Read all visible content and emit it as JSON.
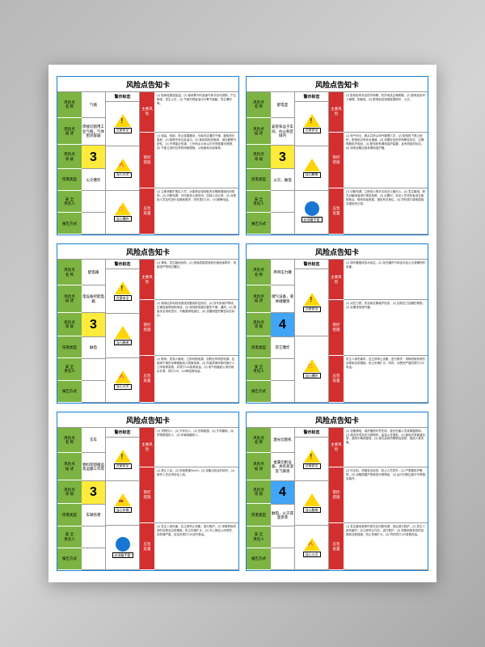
{
  "title": "风险点告知卡",
  "labels": {
    "name": "风险点\n名 称",
    "desc": "风险点\n描 述",
    "level": "风险点\n等 级",
    "type": "伤害类型",
    "person": "安 全\n责任人",
    "report": "报告方式",
    "signs": "警示标志",
    "main_risk": "主要风险",
    "control": "管控\n措施",
    "emergency": "应急\n处置"
  },
  "cards": [
    {
      "name": "气瓶",
      "desc": "焊接切割用工业气瓶，气体密闭容器",
      "level": "3",
      "level_color": "yellow",
      "type": "火灾爆炸",
      "person": "",
      "report": "",
      "signs": [
        {
          "icon": "warn",
          "caption": "注意安全"
        },
        {
          "icon": "fire",
          "caption": "当心火灾"
        },
        {
          "icon": "explode",
          "caption": "当心爆炸"
        }
      ],
      "main_risk": "(1) 瓶体碰撞或高温，(2) 使用氧气时高速气体冲击可燃物，产生静电，发生火灾，(3) 气瓶内残留油污与氧气接触，发生爆炸等。",
      "control": "(1) 轻装、轻卸，防止碰撞震动，仓库内应通风干燥，避免阳光直射，(2) 瓶嘴不准沾染油污，(3) 使用前检查瓶阀、减压器等气密性，(4) 不得靠近热源，工作地点10米以内不得放置可燃物，(5) 气瓶立放时应有防倾倒措施，以免倒地引起事故。",
      "emergency": "(1) 立即疏散扩散区人员，对事故区域采取安全隔离措施封闭现场，(2) 切断电源，尽可能将火源关闭，控制火灾区域，(3) 对受到人员及时进行自救和救护，同时拨打120、110报警电话。"
    },
    {
      "name": "配电室",
      "desc": "安装布设于车间，办公各区域内",
      "level": "3",
      "level_color": "yellow",
      "type": "火灾，触电",
      "person": "",
      "report": "",
      "signs": [
        {
          "icon": "warn",
          "caption": "注意安全"
        },
        {
          "icon": "elec",
          "caption": "当心触电"
        },
        {
          "icon": "blue",
          "caption": "必须戴手套"
        }
      ],
      "main_risk": "(1) 配电柜有安全防护和警，防护用品正确佩戴，(2) 配电柜设专人管理，防触电，(3) 配电柜容易被碰撞损坏，火灾。",
      "control": "(1) 电气作业，服从并听从电气管理人员，(2) 配电柜下禁止堆积，配电柜边有安全通道，(3) 设置安全防护和警告标志，正确佩戴防护用品，(4) 配电柜有漏电保护装置，且有明显的标志。(5) 用电设备应接有漏电保护器。",
      "emergency": "(1) 切断电源，立即将火势扑灭用灭火器灭火，(2) 发生触电，首先对触电者进行紧急抢救，(3) 必要时，安全人员将伤者送往医院救治，联系伤者家属，报告有关单位，(4) 同时拨打事故原因并做相关记录。"
    },
    {
      "name": "配电箱",
      "desc": "电设备控配电箱",
      "level": "3",
      "level_color": "yellow",
      "type": "触电",
      "person": "",
      "report": "",
      "signs": [
        {
          "icon": "warn",
          "caption": "注意安全"
        },
        {
          "icon": "elec",
          "caption": "当心触电"
        },
        {
          "icon": "fire",
          "caption": "当心火灾"
        }
      ],
      "main_risk": "(1) 漏电，发生触电危险，(2) 绝缘层破损或老化使绝缘损坏，电缆线严禁穿过碾压。",
      "control": "(1) 使用后的电线设施或设备用前应测试，(2) 设专用保护零线，正确连接零线和地线，(3) 保持配电箱位置的干燥，通风，(4) 提高安全用电意识，不触摸带电部位，(5) 设置明显的警告标志标示。",
      "emergency": "(1) 断电，发现人触电，立即切断电源，如附近有明显电源，应使用干燥的木棒使触电人脱离电源，(2) 伤者痉挛呼吸时施行人工呼吸等急救，并拨打120急救电话，(3) 电气线路起火请勿用水扑救，拨打120、119等急救电话。"
    },
    {
      "name": "简单压力罐",
      "desc": "储气设备，液体储罐等",
      "level": "4",
      "level_color": "blue",
      "type": "其它爆炸",
      "person": "",
      "report": "",
      "signs": [
        {
          "icon": "warn",
          "caption": "注意安全"
        },
        {
          "icon": "explode",
          "caption": "当心爆炸"
        }
      ],
      "main_risk": "(1) 操作罐做成多水检定，(2) 存在罐内气体含引起火灾或爆炸的危害。",
      "control": "(1) 对压力表，安全阀定期维护检查，(2) 控制压力容器的规程，(3) 定期排放储气罐。",
      "emergency": "发生人身伤害时，应立即停止设备，进行救护，采取积极有效的自救和互助措施，防止伤情扩大，同时，对受伤严重的拨打120电话。"
    },
    {
      "name": "叉车",
      "desc": "物料装卸搬运及运输工作等",
      "level": "3",
      "level_color": "yellow",
      "type": "车辆伤害",
      "person": "",
      "report": "",
      "signs": [
        {
          "icon": "warn",
          "caption": "注意安全"
        },
        {
          "icon": "car",
          "caption": "当心车辆"
        },
        {
          "icon": "blue",
          "caption": "必须戴手套"
        }
      ],
      "main_risk": "(1) 货物伤人，(2) 叉车伤人，(3) 货物碰撞，(4) 叉车翻倒，(5) 货物脱落伤人，(6) 车辆倾翻伤人。",
      "control": "(1) 禁止人坐，(2) 场地限速5km/h，(3) 设备点检及时填写，(4) 操作人员必须持证上岗。",
      "emergency": "(1) 发生人身伤害，应立即停止设备，进行救护，(2) 采取积极有效的自救及互助措施，防止伤情扩大，(3) 马上报告公司领导，如伤情严重，应及时拨打120送外救治。"
    },
    {
      "name": "激光切割机",
      "desc": "金属切削设备，具有高温及飞溅等",
      "level": "4",
      "level_color": "blue",
      "type": "触电，火灾或窒息等",
      "person": "",
      "report": "",
      "signs": [
        {
          "icon": "warn",
          "caption": "注意安全"
        },
        {
          "icon": "elec",
          "caption": "当心触电"
        },
        {
          "icon": "fire",
          "caption": "当心火灾"
        }
      ],
      "main_risk": "(1) 设备漏电，保护器损坏灵失效，激光伤害人员或周围物体，(2) 周边环境存在可燃物时，高温火花溅射，(3) 使用光导管道杂质，造成中毒或窒息，(4) 激光会射伤眼睛及皮肤，造成人身伤害。",
      "control": "(1) 作业前，须做安全检查，防止人员意外，(2) 严禁戴防护眼镜，(3) 设备周围严禁堆放可燃物品，(4) 运行切割过程中不得擅自离开。",
      "emergency": "(1) 发生触电事故时首先应切断电源，然后进行救护，(2) 发生人身伤害时，应立即停止作业，进行救护，(3) 采取积极有效的自救和互助措施，防止伤情扩大，(4) 同时拨打120急救电话。"
    }
  ],
  "colors": {
    "border": "#1a7fd4",
    "green": "#7cb342",
    "red": "#d32f2f",
    "yellow": "#ffeb3b",
    "blue_level": "#42a5f5",
    "warn_yellow": "#ffd600",
    "blue_circle": "#1976d2"
  }
}
